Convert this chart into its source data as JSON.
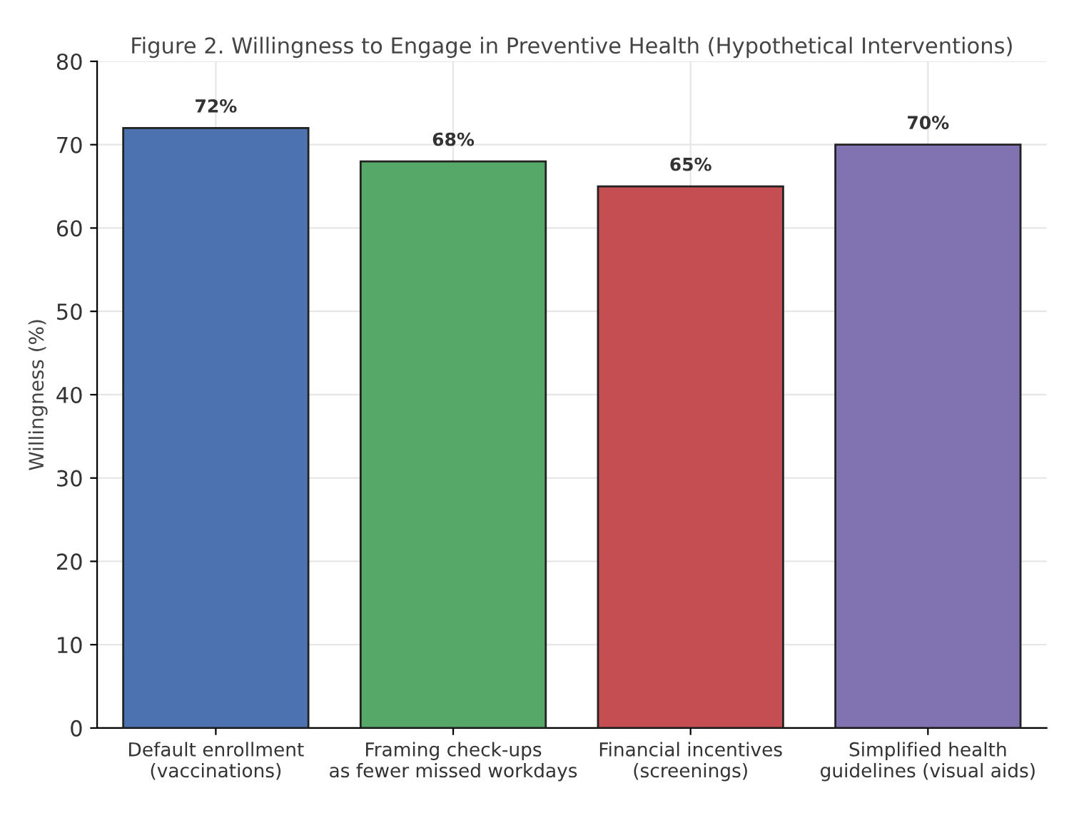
{
  "chart_data": {
    "type": "bar",
    "title": "Figure 2. Willingness to Engage in Preventive Health (Hypothetical Interventions)",
    "ylabel": "Willingness (%)",
    "categories": [
      "Default enrollment\n(vaccinations)",
      "Framing check-ups\nas fewer missed workdays",
      "Financial incentives\n(screenings)",
      "Simplified health\nguidelines (visual aids)"
    ],
    "values": [
      72,
      68,
      65,
      70
    ],
    "colors": [
      "#4c72b0",
      "#55a868",
      "#c44e52",
      "#8172b2"
    ],
    "value_labels": [
      "72%",
      "68%",
      "65%",
      "70%"
    ],
    "ylim": [
      0,
      80
    ],
    "yticks": [
      0,
      10,
      20,
      30,
      40,
      50,
      60,
      70,
      80
    ],
    "grid": true
  }
}
